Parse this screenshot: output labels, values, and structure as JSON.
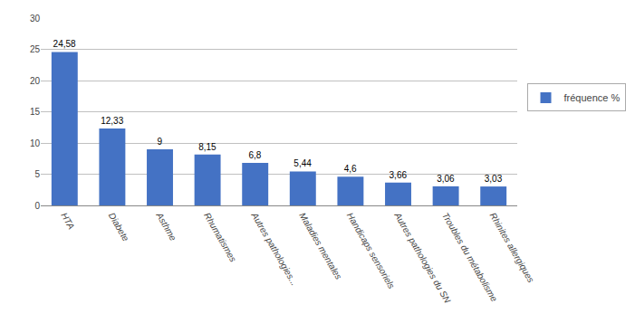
{
  "chart_data": {
    "type": "bar",
    "categories": [
      "HTA",
      "Diabete",
      "Asthme",
      "Rhumatismes",
      "Autres pathologies...",
      "Maladies mentales",
      "Handicaps sensoriels",
      "Autres pathologies du SN",
      "Troubles du métabolisme",
      "Rhinites allergiques"
    ],
    "series": [
      {
        "name": "fréquence %",
        "color": "#4472C4",
        "values": [
          24.58,
          12.33,
          9,
          8.15,
          6.8,
          5.44,
          4.6,
          3.66,
          3.06,
          3.03
        ],
        "value_labels": [
          "24,58",
          "12,33",
          "9",
          "8,15",
          "6,8",
          "5,44",
          "4,6",
          "3,66",
          "3,06",
          "3,03"
        ]
      }
    ],
    "ylim": [
      0,
      30
    ],
    "yticks": [
      0,
      5,
      10,
      15,
      20,
      25,
      30
    ],
    "grid": true,
    "data_labels": true,
    "legend": "right"
  }
}
